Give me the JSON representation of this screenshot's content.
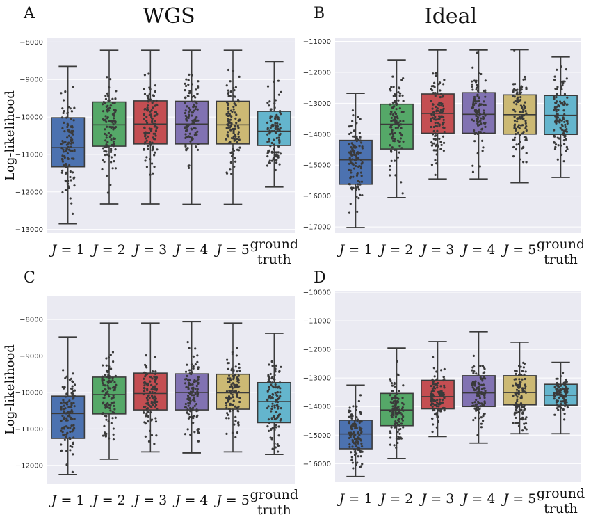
{
  "chart_data": [
    {
      "panel": "A",
      "title": "WGS",
      "type": "box",
      "ylabel": "Log-likelihood",
      "ylim": [
        -13100,
        -7900
      ],
      "yticks": [
        -8000,
        -9000,
        -10000,
        -11000,
        -12000,
        -13000
      ],
      "categories": [
        "J = 1",
        "J = 2",
        "J = 3",
        "J = 4",
        "J = 5",
        "ground truth"
      ],
      "colors": [
        "#4c72b0",
        "#55a868",
        "#c44e52",
        "#8172b2",
        "#ccb974",
        "#64b5cd"
      ],
      "boxes": [
        {
          "whislo": -12850,
          "q1": -11330,
          "med": -10820,
          "q3": -10020,
          "whishi": -8650
        },
        {
          "whislo": -12320,
          "q1": -10780,
          "med": -10210,
          "q3": -9600,
          "whishi": -8220
        },
        {
          "whislo": -12320,
          "q1": -10720,
          "med": -10190,
          "q3": -9570,
          "whishi": -8220
        },
        {
          "whislo": -12330,
          "q1": -10720,
          "med": -10190,
          "q3": -9580,
          "whishi": -8220
        },
        {
          "whislo": -12330,
          "q1": -10720,
          "med": -10210,
          "q3": -9580,
          "whishi": -8220
        },
        {
          "whislo": -11870,
          "q1": -10760,
          "med": -10380,
          "q3": -9850,
          "whishi": -8520
        }
      ]
    },
    {
      "panel": "B",
      "title": "Ideal",
      "type": "box",
      "ylabel": "",
      "ylim": [
        -17200,
        -10900
      ],
      "yticks": [
        -11000,
        -12000,
        -13000,
        -14000,
        -15000,
        -16000,
        -17000
      ],
      "categories": [
        "J = 1",
        "J = 2",
        "J = 3",
        "J = 4",
        "J = 5",
        "ground truth"
      ],
      "colors": [
        "#4c72b0",
        "#55a868",
        "#c44e52",
        "#8172b2",
        "#ccb974",
        "#64b5cd"
      ],
      "boxes": [
        {
          "whislo": -17020,
          "q1": -15620,
          "med": -14830,
          "q3": -14200,
          "whishi": -12680
        },
        {
          "whislo": -16050,
          "q1": -14480,
          "med": -13680,
          "q3": -13030,
          "whishi": -11600
        },
        {
          "whislo": -15450,
          "q1": -13970,
          "med": -13330,
          "q3": -12700,
          "whishi": -11280
        },
        {
          "whislo": -15450,
          "q1": -13970,
          "med": -13360,
          "q3": -12660,
          "whishi": -11280
        },
        {
          "whislo": -15570,
          "q1": -14000,
          "med": -13370,
          "q3": -12730,
          "whishi": -11270
        },
        {
          "whislo": -15400,
          "q1": -14010,
          "med": -13390,
          "q3": -12750,
          "whishi": -11500
        }
      ]
    },
    {
      "panel": "C",
      "title": "",
      "type": "box",
      "ylabel": "Log-likelihood",
      "ylim": [
        -12500,
        -7350
      ],
      "yticks": [
        -8000,
        -9000,
        -10000,
        -11000,
        -12000
      ],
      "categories": [
        "J = 1",
        "J = 2",
        "J = 3",
        "J = 4",
        "J = 5",
        "ground truth"
      ],
      "colors": [
        "#4c72b0",
        "#55a868",
        "#c44e52",
        "#8172b2",
        "#ccb974",
        "#64b5cd"
      ],
      "boxes": [
        {
          "whislo": -12250,
          "q1": -11260,
          "med": -10580,
          "q3": -10100,
          "whishi": -8480
        },
        {
          "whislo": -11830,
          "q1": -10590,
          "med": -10060,
          "q3": -9580,
          "whishi": -8100
        },
        {
          "whislo": -11630,
          "q1": -10480,
          "med": -10030,
          "q3": -9470,
          "whishi": -8100
        },
        {
          "whislo": -11660,
          "q1": -10480,
          "med": -10000,
          "q3": -9490,
          "whishi": -8060
        },
        {
          "whislo": -11630,
          "q1": -10460,
          "med": -10010,
          "q3": -9500,
          "whishi": -8100
        },
        {
          "whislo": -11700,
          "q1": -10830,
          "med": -10250,
          "q3": -9730,
          "whishi": -8380
        }
      ]
    },
    {
      "panel": "D",
      "title": "",
      "type": "box",
      "ylabel": "",
      "ylim": [
        -16650,
        -9950
      ],
      "yticks": [
        -10000,
        -11000,
        -12000,
        -13000,
        -14000,
        -15000,
        -16000
      ],
      "categories": [
        "J = 1",
        "J = 2",
        "J = 3",
        "J = 4",
        "J = 5",
        "ground truth"
      ],
      "colors": [
        "#4c72b0",
        "#55a868",
        "#c44e52",
        "#8172b2",
        "#ccb974",
        "#64b5cd"
      ],
      "boxes": [
        {
          "whislo": -16450,
          "q1": -15480,
          "med": -14960,
          "q3": -14480,
          "whishi": -13250
        },
        {
          "whislo": -15820,
          "q1": -14670,
          "med": -14120,
          "q3": -13540,
          "whishi": -11950
        },
        {
          "whislo": -15050,
          "q1": -14080,
          "med": -13650,
          "q3": -13080,
          "whishi": -11730
        },
        {
          "whislo": -15280,
          "q1": -14000,
          "med": -13520,
          "q3": -12920,
          "whishi": -11380
        },
        {
          "whislo": -14950,
          "q1": -13940,
          "med": -13510,
          "q3": -12920,
          "whishi": -11750
        },
        {
          "whislo": -14950,
          "q1": -13950,
          "med": -13600,
          "q3": -13220,
          "whishi": -12450
        }
      ]
    }
  ]
}
